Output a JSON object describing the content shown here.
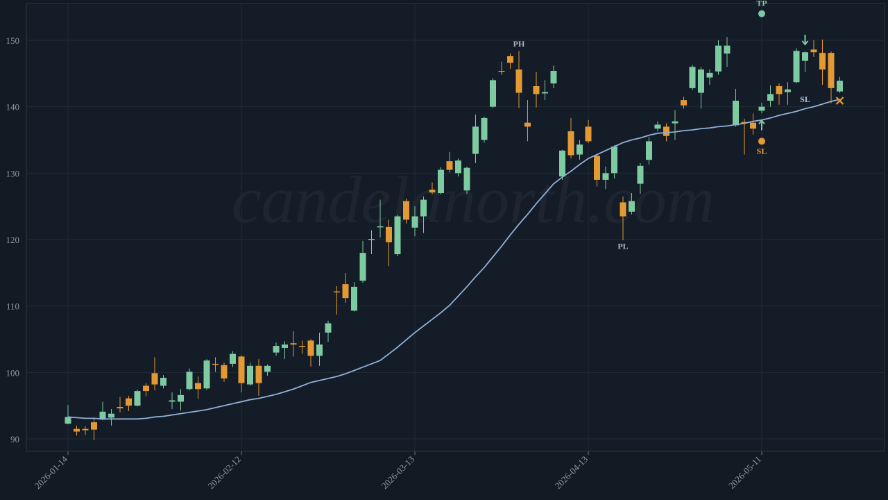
{
  "chart_data": {
    "type": "candlestick",
    "watermark": "candelanorth.com",
    "categories": [
      "2026-01-14",
      null,
      null,
      null,
      null,
      null,
      null,
      null,
      null,
      null,
      null,
      null,
      null,
      null,
      null,
      null,
      null,
      null,
      null,
      null,
      "2026-02-12",
      null,
      null,
      null,
      null,
      null,
      null,
      null,
      null,
      null,
      null,
      null,
      null,
      null,
      null,
      null,
      null,
      null,
      null,
      null,
      "2026-03-13",
      null,
      null,
      null,
      null,
      null,
      null,
      null,
      null,
      null,
      null,
      null,
      null,
      null,
      null,
      null,
      null,
      null,
      null,
      null,
      "2026-04-13",
      null,
      null,
      null,
      null,
      null,
      null,
      null,
      null,
      null,
      null,
      null,
      null,
      null,
      null,
      null,
      null,
      null,
      null,
      null,
      "2026-05-11",
      null,
      null,
      null,
      null,
      null,
      null,
      null,
      null,
      null
    ],
    "open": [
      92.3,
      91.5,
      91.5,
      92.5,
      92.9,
      93.2,
      94.8,
      96.1,
      95.0,
      98.0,
      99.9,
      98.0,
      95.6,
      95.6,
      97.5,
      98.4,
      97.6,
      101.3,
      101.1,
      101.3,
      102.4,
      98.2,
      101.0,
      100.1,
      103.0,
      103.7,
      104.4,
      104.0,
      104.8,
      102.5,
      106.0,
      112.2,
      113.3,
      109.3,
      113.8,
      120.0,
      121.9,
      121.9,
      117.8,
      125.8,
      121.8,
      123.5,
      127.5,
      127.0,
      131.8,
      130.0,
      127.4,
      132.9,
      135.0,
      140.0,
      145.4,
      147.6,
      145.6,
      137.6,
      143.1,
      142.0,
      143.5,
      129.5,
      136.3,
      132.8,
      137.0,
      132.6,
      129.0,
      130.0,
      125.6,
      124.2,
      128.4,
      132.0,
      136.7,
      137.0,
      137.5,
      141.0,
      142.8,
      142.1,
      144.4,
      145.3,
      148.0,
      137.2,
      137.7,
      137.6,
      139.4,
      140.9,
      143.1,
      142.2,
      143.7,
      146.9,
      148.6,
      148.1,
      148.1,
      142.3
    ],
    "high": [
      95.1,
      92.0,
      91.9,
      93.0,
      95.6,
      94.5,
      96.3,
      96.5,
      97.4,
      98.4,
      102.3,
      99.6,
      97.0,
      97.5,
      100.6,
      99.4,
      102.0,
      102.3,
      101.5,
      103.2,
      102.6,
      101.5,
      102.0,
      101.2,
      104.5,
      104.7,
      106.2,
      104.8,
      105.0,
      106.0,
      107.8,
      113.0,
      115.0,
      113.6,
      119.8,
      121.4,
      126.0,
      123.0,
      123.7,
      126.2,
      125.0,
      126.5,
      128.6,
      130.9,
      133.2,
      132.2,
      131.0,
      138.8,
      138.5,
      144.3,
      146.8,
      148.0,
      148.4,
      141.0,
      145.2,
      144.0,
      146.2,
      133.5,
      138.3,
      135.0,
      138.0,
      132.8,
      131.0,
      134.2,
      126.5,
      127.0,
      131.5,
      135.5,
      137.8,
      137.5,
      139.5,
      141.5,
      146.3,
      146.0,
      145.6,
      150.0,
      150.5,
      142.7,
      138.2,
      139.0,
      140.6,
      143.2,
      143.5,
      143.7,
      148.8,
      148.3,
      150.0,
      150.1,
      148.3,
      144.5
    ],
    "low": [
      92.2,
      90.5,
      90.6,
      89.8,
      92.8,
      92.0,
      94.0,
      94.2,
      94.9,
      96.4,
      97.3,
      97.6,
      94.5,
      94.3,
      97.3,
      96.0,
      97.4,
      100.1,
      98.6,
      100.8,
      97.0,
      98.0,
      96.5,
      99.5,
      102.5,
      102.0,
      102.4,
      102.8,
      100.9,
      101.0,
      104.6,
      108.7,
      110.5,
      109.2,
      113.5,
      117.8,
      120.3,
      116.0,
      117.5,
      122.4,
      120.5,
      121.0,
      126.8,
      126.8,
      130.1,
      129.5,
      126.9,
      131.5,
      134.6,
      139.8,
      144.8,
      145.7,
      139.8,
      134.8,
      139.9,
      141.0,
      142.8,
      129.0,
      132.2,
      132.0,
      134.5,
      128.0,
      127.6,
      129.2,
      119.9,
      123.8,
      126.9,
      131.3,
      136.3,
      134.8,
      135.0,
      139.7,
      142.5,
      139.7,
      143.3,
      144.8,
      146.0,
      137.0,
      132.8,
      135.8,
      139.0,
      140.0,
      140.3,
      140.3,
      143.5,
      145.2,
      147.5,
      143.3,
      140.5,
      142.1
    ],
    "close": [
      93.3,
      91.1,
      91.3,
      91.4,
      94.1,
      93.8,
      94.6,
      95.0,
      97.2,
      97.2,
      98.2,
      99.2,
      95.8,
      96.6,
      100.1,
      97.5,
      101.8,
      101.2,
      99.1,
      102.8,
      98.4,
      101.0,
      98.4,
      101.0,
      104.0,
      104.2,
      104.2,
      103.9,
      102.5,
      104.2,
      107.4,
      112.1,
      111.2,
      112.9,
      118.0,
      120.1,
      122.0,
      119.6,
      123.5,
      123.0,
      123.5,
      126.0,
      127.1,
      130.5,
      130.5,
      131.9,
      130.8,
      137.0,
      138.3,
      144.0,
      145.3,
      146.6,
      142.1,
      137.0,
      141.9,
      142.2,
      145.4,
      133.4,
      132.7,
      134.3,
      134.8,
      129.0,
      130.0,
      134.0,
      123.5,
      125.8,
      131.1,
      134.8,
      137.3,
      135.6,
      137.8,
      140.2,
      146.0,
      145.6,
      145.1,
      149.2,
      149.2,
      140.9,
      137.5,
      136.7,
      140.0,
      141.9,
      141.9,
      142.6,
      148.4,
      148.2,
      148.2,
      145.6,
      142.8,
      143.9
    ],
    "up_color": "#7ecba1",
    "down_color": "#e49a34",
    "line": {
      "color": "#8fb0d8",
      "values": [
        93.3,
        93.2,
        93.1,
        93.1,
        93.0,
        93.0,
        93.0,
        93.0,
        93.0,
        93.1,
        93.3,
        93.4,
        93.6,
        93.8,
        94.0,
        94.2,
        94.4,
        94.7,
        95.0,
        95.3,
        95.6,
        95.9,
        96.1,
        96.4,
        96.7,
        97.1,
        97.5,
        98.0,
        98.5,
        98.8,
        99.1,
        99.4,
        99.8,
        100.3,
        100.8,
        101.3,
        101.8,
        102.8,
        103.8,
        104.9,
        106.0,
        107.0,
        108.0,
        109.0,
        110.1,
        111.5,
        112.9,
        114.4,
        115.8,
        117.4,
        119.0,
        120.7,
        122.3,
        123.8,
        125.4,
        126.9,
        128.4,
        129.4,
        130.3,
        131.3,
        132.2,
        132.8,
        133.4,
        134.0,
        134.6,
        135.0,
        135.3,
        135.7,
        136.0,
        136.1,
        136.2,
        136.4,
        136.5,
        136.7,
        136.8,
        137.0,
        137.1,
        137.3,
        137.5,
        137.8,
        138.0,
        138.3,
        138.7,
        139.0,
        139.3,
        139.7,
        140.0,
        140.4,
        140.8,
        141.1
      ]
    },
    "ylim": [
      88.12,
      155.54
    ],
    "yticks": [
      90,
      100,
      110,
      120,
      130,
      140,
      150
    ],
    "grid": true,
    "markers": [
      {
        "kind": "label",
        "text": "PH",
        "x": 52,
        "y": 149.5,
        "color": "#a9b4c0"
      },
      {
        "kind": "label",
        "text": "PL",
        "x": 64,
        "y": 119.0,
        "color": "#a9b4c0"
      },
      {
        "kind": "dot-above",
        "text": "TP",
        "x": 80,
        "y": 154.0,
        "color": "#7ecba1"
      },
      {
        "kind": "dot-below",
        "text": "SL",
        "x": 80,
        "y": 134.8,
        "color": "#e49a34"
      },
      {
        "kind": "arrow-up",
        "x": 80,
        "y": 137.2,
        "color": "#7ecba1"
      },
      {
        "kind": "arrow-down",
        "x": 85,
        "y": 150.1,
        "color": "#7ecba1"
      },
      {
        "kind": "label",
        "text": "SL",
        "x": 85,
        "y": 141.1,
        "color": "#a9c8ee"
      },
      {
        "kind": "cross",
        "x": 89,
        "y": 140.9,
        "color": "#e49a34"
      }
    ]
  }
}
